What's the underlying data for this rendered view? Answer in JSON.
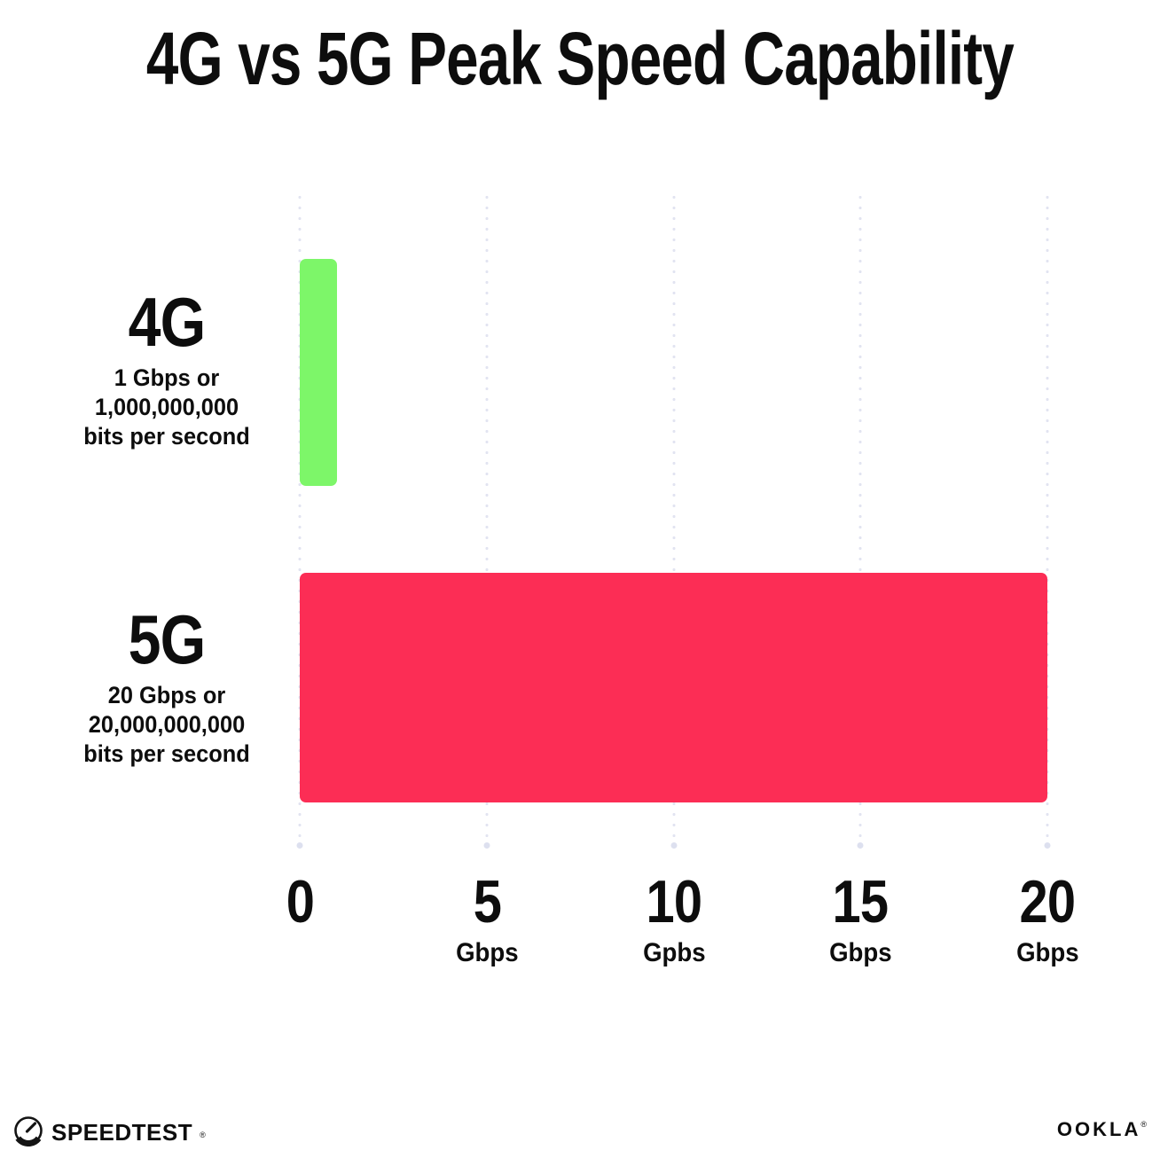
{
  "title": "4G vs 5G Peak Speed Capability",
  "colors": {
    "ink": "#0d0d0d",
    "green": "#7DF669",
    "pink": "#FC2D55",
    "grid": "#E2E4F1",
    "grid_dot": "#DDE0EF"
  },
  "chart_data": {
    "type": "bar",
    "orientation": "horizontal",
    "title": "4G vs 5G Peak Speed Capability",
    "categories": [
      "4G",
      "5G"
    ],
    "values": [
      1,
      20
    ],
    "bar_colors": [
      "#7DF669",
      "#FC2D55"
    ],
    "xlim": [
      0,
      20
    ],
    "xlabel": "Gbps",
    "ylabel": "",
    "grid": "vertical dotted gridlines at 0, 5, 10, 15, 20",
    "legend": "none",
    "x_ticks": [
      {
        "value": 0,
        "label": "0",
        "unit": ""
      },
      {
        "value": 5,
        "label": "5",
        "unit": "Gbps"
      },
      {
        "value": 10,
        "label": "10",
        "unit": "Gpbs"
      },
      {
        "value": 15,
        "label": "15",
        "unit": "Gbps"
      },
      {
        "value": 20,
        "label": "20",
        "unit": "Gbps"
      }
    ]
  },
  "rows": [
    {
      "label": "4G",
      "line1": "1 Gbps or",
      "line2": "1,000,000,000",
      "line3": "bits per second",
      "value": 1,
      "color": "#7DF669"
    },
    {
      "label": "5G",
      "line1": "20 Gbps or",
      "line2": "20,000,000,000",
      "line3": "bits per second",
      "value": 20,
      "color": "#FC2D55"
    }
  ],
  "footer": {
    "speedtest_label": "SPEEDTEST",
    "speedtest_mark": "®",
    "ookla_label": "OOKLA",
    "ookla_mark": "®"
  }
}
